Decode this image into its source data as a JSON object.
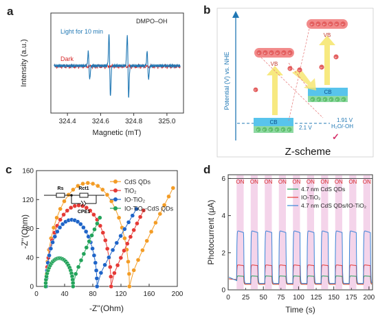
{
  "chart_data": [
    {
      "panel": "a",
      "type": "line",
      "title": "DMPO–OH",
      "xlabel": "Magnetic (mT)",
      "ylabel": "Intensity (a.u.)",
      "xlim": [
        324.3,
        325.1
      ],
      "x_ticks": [
        "324.4",
        "324.6",
        "324.8",
        "325.0"
      ],
      "series": [
        {
          "name": "Light for 10 min",
          "color": "#1f77b4",
          "peaks": [
            {
              "x": 324.53,
              "amp": 0.45
            },
            {
              "x": 324.655,
              "amp": 1.0
            },
            {
              "x": 324.765,
              "amp": 1.0
            },
            {
              "x": 324.885,
              "amp": 0.45
            }
          ]
        },
        {
          "name": "Dark",
          "color": "#d62728",
          "peaks": []
        }
      ]
    },
    {
      "panel": "b",
      "type": "diagram",
      "ylabel": "Potential (V) vs. NHE",
      "caption": "Z-scheme",
      "labels": {
        "cb": "CB",
        "vb": "VB",
        "e": "e⁻",
        "h": "h⁺"
      },
      "potentials": [
        {
          "text": "1.91 V",
          "color": "#1f77b4"
        },
        {
          "text": "H₂O/·OH",
          "color": "#1f77b4"
        },
        {
          "text": "2.1 V",
          "color": "#1f77b4"
        }
      ],
      "check": "✓"
    },
    {
      "panel": "c",
      "type": "scatter",
      "xlabel": "-Z''(Ohm)",
      "ylabel": "-Z''(Ohm)",
      "xlim": [
        0,
        200
      ],
      "ylim": [
        0,
        160
      ],
      "x_ticks": [
        0,
        40,
        80,
        120,
        160,
        200
      ],
      "y_ticks": [
        0,
        40,
        80,
        120,
        160
      ],
      "circuit": {
        "rs": "Rs",
        "rct": "Rct1",
        "cpe": "CPE1"
      },
      "series": [
        {
          "name": "CdS QDs",
          "color": "#f39c25",
          "arc": {
            "start": 14,
            "end": 132,
            "peak": 143
          },
          "tail_end": [
            194,
            136
          ]
        },
        {
          "name": "TiO₂",
          "color": "#e53935",
          "arc": {
            "start": 14,
            "end": 106,
            "peak": 112
          },
          "tail_end": [
            152,
            105
          ]
        },
        {
          "name": "IO-TiO₂",
          "color": "#1e64c8",
          "arc": {
            "start": 14,
            "end": 86,
            "peak": 92
          },
          "tail_end": [
            142,
            107
          ]
        },
        {
          "name": "IO-TiO₂-CdS QDs",
          "color": "#22a35a",
          "arc": {
            "start": 13,
            "end": 52,
            "peak": 39
          },
          "tail_end": [
            90,
            95
          ]
        }
      ]
    },
    {
      "panel": "d",
      "type": "line",
      "xlabel": "Time (s)",
      "ylabel": "Photocurrent (μA)",
      "xlim": [
        0,
        205
      ],
      "ylim": [
        0,
        6.2
      ],
      "x_ticks": [
        0,
        50,
        100,
        150,
        200
      ],
      "x_minor_ticks": [
        25,
        75,
        125,
        175
      ],
      "y_ticks": [
        0,
        2,
        4,
        6
      ],
      "on_label": "ON",
      "on_periods": [
        [
          12,
          22
        ],
        [
          32,
          42
        ],
        [
          52,
          62
        ],
        [
          72,
          82
        ],
        [
          92,
          102
        ],
        [
          112,
          122
        ],
        [
          132,
          142
        ],
        [
          152,
          162
        ],
        [
          172,
          182
        ],
        [
          192,
          202
        ]
      ],
      "series": [
        {
          "name": "4.7 nm CdS QDs",
          "color": "#22a35a",
          "on": 0.75,
          "off": 0.3
        },
        {
          "name": "IO-TiO₂",
          "color": "#e53935",
          "on": 1.35,
          "off": 0.3
        },
        {
          "name": "4.7 nm CdS QDs/IO-TiO₂",
          "color": "#3a86d8",
          "on": 3.2,
          "off": 0.35
        }
      ]
    }
  ]
}
